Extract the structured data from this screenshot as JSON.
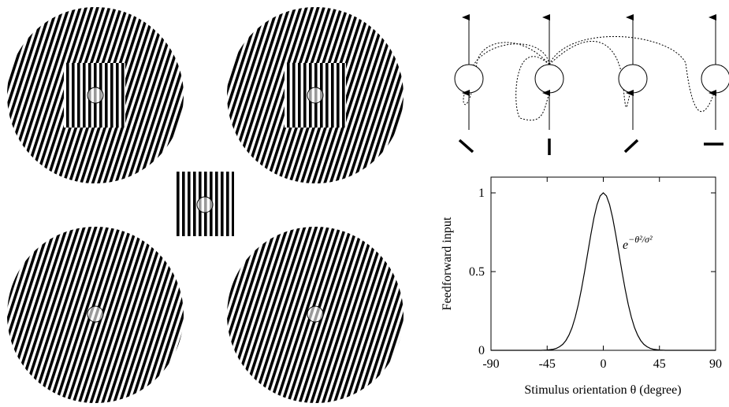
{
  "chart_data": {
    "type": "line",
    "xlabel": "Stimulus orientation θ (degree)",
    "ylabel": "Feedforward input",
    "annotation": {
      "base": "e",
      "exponent": "−θ²/σ²"
    },
    "x": [
      -90,
      -80,
      -70,
      -60,
      -50,
      -45,
      -40,
      -37.5,
      -35,
      -32.5,
      -30,
      -27.5,
      -25,
      -22.5,
      -20,
      -17.5,
      -15,
      -12.5,
      -10,
      -7.5,
      -5,
      -2.5,
      0,
      2.5,
      5,
      7.5,
      10,
      12.5,
      15,
      17.5,
      20,
      22.5,
      25,
      27.5,
      30,
      32.5,
      35,
      37.5,
      40,
      45,
      50,
      60,
      70,
      80,
      90
    ],
    "values": [
      0,
      0,
      0,
      0,
      0,
      0.002,
      0.007,
      0.013,
      0.023,
      0.038,
      0.062,
      0.097,
      0.145,
      0.21,
      0.291,
      0.389,
      0.499,
      0.617,
      0.734,
      0.841,
      0.926,
      0.981,
      1,
      0.981,
      0.926,
      0.841,
      0.734,
      0.617,
      0.499,
      0.389,
      0.291,
      0.21,
      0.145,
      0.097,
      0.062,
      0.038,
      0.023,
      0.013,
      0.007,
      0.002,
      0,
      0,
      0,
      0,
      0
    ],
    "color": "#000000",
    "xlim": [
      -90,
      90
    ],
    "ylim": [
      0,
      1.1
    ],
    "xticks": [
      -90,
      -45,
      0,
      45,
      90
    ],
    "yticks": [
      0,
      0.5,
      1
    ]
  }
}
